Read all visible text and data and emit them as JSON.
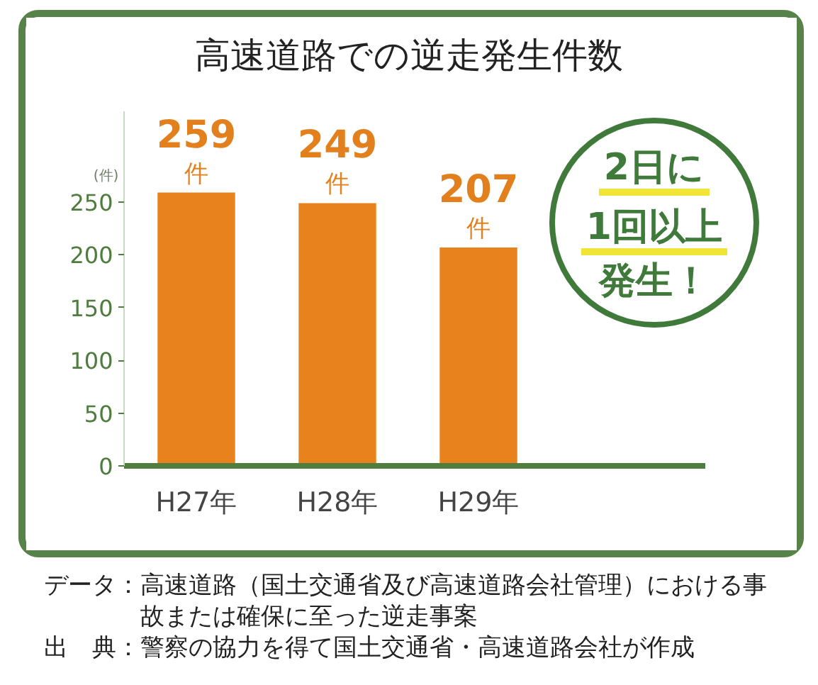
{
  "chart_data": {
    "type": "bar",
    "title": "高速道路での逆走発生件数",
    "ylabel": "(件)",
    "categories": [
      "H27年",
      "H28年",
      "H29年"
    ],
    "values": [
      259,
      249,
      207
    ],
    "color": "#e8821c",
    "value_labels": [
      "259\n件",
      "249\n件",
      "207\n件"
    ],
    "ylim": [
      0,
      336
    ],
    "yticks": [
      0,
      50,
      100,
      150,
      200,
      250
    ],
    "grid": false,
    "annotations": [
      "2日に1回以上発生！",
      "データ：高速道路（国土交通省及び高速道路会社管理）における事故または確保に至った逆走事案",
      "出　典：警察の協力を得て国土交通省・高速道路会社が作成"
    ]
  }
}
